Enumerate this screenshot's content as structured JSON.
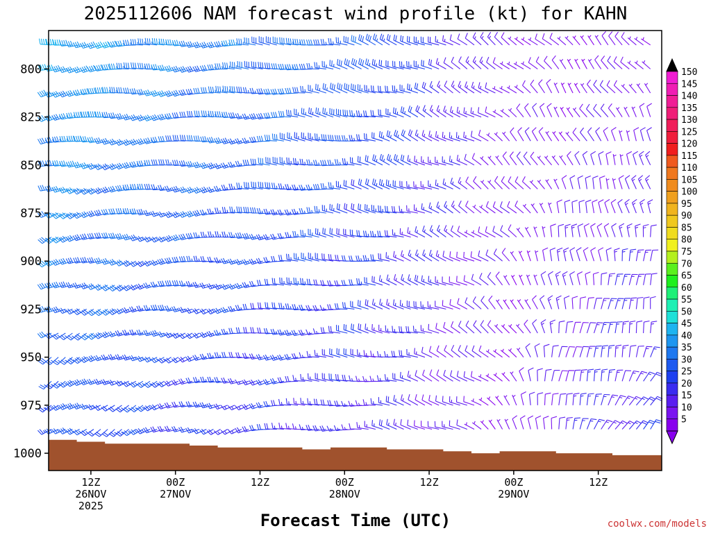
{
  "chart_data": {
    "type": "wind-barb-time-height",
    "title": "2025112606 NAM forecast wind profile (kt) for KAHN",
    "xlabel": "Forecast Time (UTC)",
    "ylabel": "",
    "y_axis": {
      "units": "hPa",
      "ticks": [
        800,
        825,
        850,
        875,
        900,
        925,
        950,
        975,
        1000
      ],
      "range": [
        780,
        1009
      ]
    },
    "x_axis": {
      "start": "2025-11-26 06Z",
      "end": "2025-11-29 21Z",
      "step_hours": 1,
      "tick_labels": [
        {
          "hour": 6,
          "lines": [
            "12Z",
            "26NOV",
            "2025"
          ]
        },
        {
          "hour": 18,
          "lines": [
            "00Z",
            "27NOV"
          ]
        },
        {
          "hour": 30,
          "lines": [
            "12Z"
          ]
        },
        {
          "hour": 42,
          "lines": [
            "00Z",
            "28NOV"
          ]
        },
        {
          "hour": 54,
          "lines": [
            "12Z"
          ]
        },
        {
          "hour": 66,
          "lines": [
            "00Z",
            "29NOV"
          ]
        },
        {
          "hour": 78,
          "lines": [
            "12Z"
          ]
        }
      ]
    },
    "pressure_levels": [
      1000,
      987.5,
      975,
      962.5,
      950,
      937.5,
      925,
      912.5,
      900,
      887.5,
      875,
      862.5,
      850,
      837.5,
      825,
      812.5,
      800,
      787.5
    ],
    "wind_model": {
      "description": "Wind speed (kt) and direction (deg, from) sampled per forecast hour and level",
      "speed_keyframes_hours": [
        0,
        12,
        24,
        36,
        48,
        60,
        66,
        72,
        84
      ],
      "speed_at_800hPa": [
        40,
        35,
        32,
        30,
        25,
        12,
        8,
        6,
        8
      ],
      "speed_at_1000hPa": [
        25,
        22,
        18,
        16,
        14,
        8,
        5,
        14,
        18
      ],
      "direction_keyframes_hours": [
        0,
        24,
        48,
        60,
        66,
        72,
        84
      ],
      "direction_at_800hPa": [
        260,
        265,
        290,
        300,
        310,
        320,
        320
      ],
      "direction_at_1000hPa": [
        230,
        250,
        280,
        300,
        330,
        20,
        40
      ]
    },
    "surface_pressure": {
      "description": "Brown terrain fill below surface pressure (hPa) per forecast hour",
      "hours": [
        0,
        4,
        8,
        12,
        16,
        20,
        24,
        28,
        32,
        36,
        40,
        44,
        48,
        52,
        56,
        60,
        64,
        68,
        72,
        76,
        80,
        84
      ],
      "values": [
        993,
        994,
        995,
        995,
        995,
        996,
        997,
        997,
        997,
        998,
        997,
        997,
        998,
        998,
        999,
        1000,
        999,
        999,
        1000,
        1000,
        1001,
        1001
      ]
    },
    "colorbar": {
      "labels": [
        150,
        145,
        140,
        135,
        130,
        125,
        120,
        115,
        110,
        105,
        100,
        95,
        90,
        85,
        80,
        75,
        70,
        65,
        60,
        55,
        50,
        45,
        40,
        35,
        30,
        25,
        20,
        15,
        10,
        5
      ],
      "colors": {
        "5": "#8800ee",
        "10": "#7a14f0",
        "15": "#5a1ef0",
        "20": "#3a2cf0",
        "25": "#1e40f0",
        "30": "#1e5af0",
        "35": "#1e78f0",
        "40": "#1e96f0",
        "45": "#1eb4f0",
        "50": "#1ee0d8",
        "55": "#1ef0b4",
        "60": "#1ef078",
        "65": "#1ef01e",
        "70": "#5af01e",
        "75": "#b4f01e",
        "80": "#f0f01e",
        "85": "#f0dc1e",
        "90": "#f0c81e",
        "95": "#f0b41e",
        "100": "#f0a01e",
        "105": "#f08c1e",
        "110": "#f0781e",
        "115": "#f05a1e",
        "120": "#f01e1e",
        "125": "#f01e3c",
        "130": "#f01e5a",
        "135": "#f01e78",
        "140": "#f01e96",
        "145": "#f01eb4",
        "150": "#f01ed2"
      },
      "top_arrow_color": "#000000",
      "bottom_arrow_color": "#8800ee"
    },
    "terrain_color": "#a0522d",
    "credit": "coolwx.com/models"
  }
}
